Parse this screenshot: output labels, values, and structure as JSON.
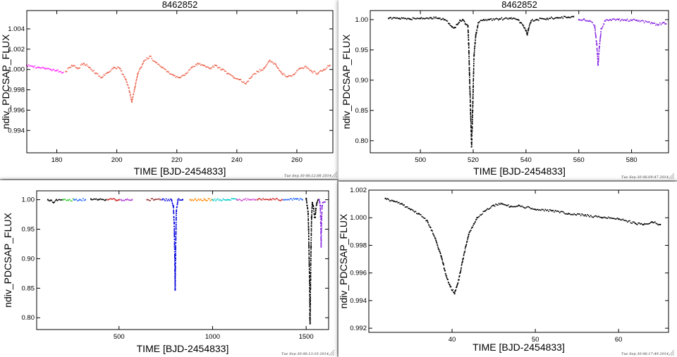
{
  "chart_data": [
    {
      "id": "p1",
      "type": "scatter",
      "title": "8462852",
      "xlabel": "TIME [BJD-2454833]",
      "ylabel": "ndiv_PDCSAP_FLUX",
      "xlim": [
        170,
        272
      ],
      "ylim": [
        0.9918,
        1.0058
      ],
      "xticks": [
        180,
        200,
        220,
        240,
        260
      ],
      "yticks": [
        0.994,
        0.996,
        0.998,
        1.0,
        1.002,
        1.004
      ],
      "yprec": 3,
      "timestamp": "Tue Sep 30 06:12:08 2014",
      "series": [
        {
          "color": "#ff33ff",
          "points": [
            [
              170,
              1.0004
            ],
            [
              172,
              1.0003
            ],
            [
              174,
              1.0002
            ],
            [
              176,
              1.0001
            ],
            [
              178,
              1.0
            ],
            [
              180,
              0.9999
            ],
            [
              182,
              0.9997
            ]
          ]
        },
        {
          "color": "#ee6a55",
          "points": [
            [
              183,
              0.9998
            ],
            [
              185,
              1.0004
            ],
            [
              187,
              1.0001
            ],
            [
              189,
              1.0006
            ],
            [
              191,
              1.0002
            ],
            [
              193,
              0.9996
            ],
            [
              195,
              0.9992
            ],
            [
              197,
              0.9997
            ],
            [
              199,
              1.0002
            ],
            [
              201,
              1.0001
            ],
            [
              203,
              0.999
            ],
            [
              204,
              0.9982
            ],
            [
              205,
              0.9968
            ],
            [
              206,
              0.9982
            ],
            [
              207,
              0.9996
            ],
            [
              209,
              1.0008
            ],
            [
              211,
              1.0013
            ],
            [
              213,
              1.0007
            ],
            [
              215,
              1.0002
            ],
            [
              217,
              0.9998
            ],
            [
              219,
              0.9994
            ],
            [
              221,
              0.9992
            ],
            [
              223,
              0.9996
            ],
            [
              225,
              1.0002
            ],
            [
              227,
              1.0006
            ],
            [
              229,
              1.0004
            ],
            [
              231,
              1.0001
            ],
            [
              233,
              1.0004
            ],
            [
              235,
              1.0
            ],
            [
              237,
              0.9996
            ],
            [
              239,
              0.9992
            ],
            [
              241,
              0.999
            ],
            [
              243,
              0.9986
            ],
            [
              245,
              0.9993
            ],
            [
              247,
              0.9998
            ],
            [
              249,
              1.0001
            ],
            [
              251,
              1.0009
            ],
            [
              253,
              1.0005
            ],
            [
              255,
              0.9996
            ],
            [
              257,
              0.9993
            ],
            [
              259,
              0.9995
            ],
            [
              261,
              1.0001
            ],
            [
              263,
              1.0003
            ],
            [
              265,
              0.9998
            ],
            [
              267,
              0.9996
            ],
            [
              269,
              1.0
            ],
            [
              271,
              1.0004
            ]
          ]
        }
      ]
    },
    {
      "id": "p2",
      "type": "scatter",
      "title": "8462852",
      "xlabel": "TIME [BJD-2454833]",
      "ylabel": "ndiv_PDCSAP_FLUX",
      "xlim": [
        481,
        594
      ],
      "ylim": [
        0.78,
        1.015
      ],
      "xticks": [
        500,
        520,
        540,
        560,
        580
      ],
      "yticks": [
        0.8,
        0.85,
        0.9,
        0.95,
        1.0
      ],
      "yprec": 2,
      "timestamp": "Tue Sep 30 06:09:47 2014",
      "series": [
        {
          "color": "#000000",
          "points": [
            [
              488,
              1.002
            ],
            [
              492,
              1.002
            ],
            [
              496,
              1.001
            ],
            [
              500,
              1.002
            ],
            [
              504,
              1.003
            ],
            [
              507,
              1.002
            ],
            [
              509,
              1.0
            ],
            [
              511,
              0.993
            ],
            [
              512,
              0.988
            ],
            [
              513,
              0.987
            ],
            [
              514,
              0.992
            ],
            [
              515,
              0.999
            ],
            [
              516,
              1.0
            ],
            [
              517,
              0.993
            ],
            [
              518,
              0.99
            ],
            [
              518.3,
              0.96
            ],
            [
              518.6,
              0.91
            ],
            [
              519,
              0.85
            ],
            [
              519.4,
              0.79
            ],
            [
              519.8,
              0.85
            ],
            [
              520.3,
              0.94
            ],
            [
              521,
              0.975
            ],
            [
              522,
              0.995
            ],
            [
              524,
              1.0
            ],
            [
              526,
              1.0
            ],
            [
              530,
              1.001
            ],
            [
              534,
              1.002
            ],
            [
              537,
              1.0
            ],
            [
              538,
              0.995
            ],
            [
              539,
              0.99
            ],
            [
              540,
              0.982
            ],
            [
              540.5,
              0.975
            ],
            [
              541,
              0.985
            ],
            [
              542,
              0.998
            ],
            [
              544,
              1.0
            ],
            [
              548,
              1.002
            ],
            [
              552,
              1.003
            ],
            [
              556,
              1.004
            ],
            [
              558,
              1.005
            ]
          ]
        },
        {
          "color": "#8a2be2",
          "points": [
            [
              560,
              1.0
            ],
            [
              562,
              1.001
            ],
            [
              564,
              0.998
            ],
            [
              566,
              0.99
            ],
            [
              566.8,
              0.96
            ],
            [
              567.3,
              0.925
            ],
            [
              567.8,
              0.955
            ],
            [
              568.5,
              0.985
            ],
            [
              570,
              0.998
            ],
            [
              572,
              1.0
            ],
            [
              575,
              1.0
            ],
            [
              578,
              0.999
            ],
            [
              580,
              0.999
            ],
            [
              582,
              0.999
            ],
            [
              588,
              0.994
            ],
            [
              590,
              0.991
            ],
            [
              592,
              0.995
            ],
            [
              593,
              0.993
            ]
          ]
        }
      ]
    },
    {
      "id": "p3",
      "type": "scatter",
      "title": "",
      "xlabel": "TIME [BJD-2454833]",
      "ylabel": "ndiv_PDCSAP_FLUX",
      "xlim": [
        60,
        1620
      ],
      "ylim": [
        0.78,
        1.015
      ],
      "xticks": [
        500,
        1000,
        1500
      ],
      "yticks": [
        0.8,
        0.85,
        0.9,
        0.95,
        1.0
      ],
      "yprec": 2,
      "timestamp": "Tue Sep 30 06:13:10 2014",
      "series": [
        {
          "color": "#000000",
          "points": [
            [
              120,
              1.0
            ],
            [
              135,
              0.999
            ],
            [
              150,
              0.995
            ],
            [
              165,
              1.0
            ],
            [
              200,
              1.0
            ]
          ]
        },
        {
          "color": "#33cc33",
          "points": [
            [
              200,
              1.0
            ],
            [
              230,
              0.999
            ],
            [
              260,
              1.0
            ]
          ]
        },
        {
          "color": "#2266ff",
          "points": [
            [
              260,
              1.0
            ],
            [
              290,
              1.0
            ],
            [
              320,
              1.0
            ]
          ]
        },
        {
          "color": "#000000",
          "points": [
            [
              350,
              1.001
            ],
            [
              390,
              1.0
            ],
            [
              430,
              1.0
            ]
          ]
        },
        {
          "color": "#cc2222",
          "points": [
            [
              440,
              1.0
            ],
            [
              480,
              1.0
            ],
            [
              500,
              1.0
            ]
          ]
        },
        {
          "color": "#aa33cc",
          "points": [
            [
              510,
              1.0
            ],
            [
              540,
              1.0
            ],
            [
              570,
              1.0
            ]
          ]
        },
        {
          "color": "#993333",
          "points": [
            [
              650,
              1.0
            ],
            [
              690,
              1.0
            ],
            [
              720,
              1.0
            ]
          ]
        },
        {
          "color": "#0000dd",
          "points": [
            [
              730,
              1.0
            ],
            [
              780,
              1.0
            ],
            [
              790,
              0.99
            ],
            [
              795,
              0.96
            ],
            [
              797,
              0.92
            ],
            [
              799,
              0.88
            ],
            [
              800,
              0.847
            ],
            [
              802,
              0.9
            ],
            [
              806,
              0.98
            ],
            [
              815,
              1.0
            ],
            [
              840,
              1.0
            ]
          ]
        },
        {
          "color": "#ff8800",
          "points": [
            [
              880,
              1.0
            ],
            [
              960,
              1.0
            ],
            [
              1000,
              1.0
            ]
          ]
        },
        {
          "color": "#00cccc",
          "points": [
            [
              1000,
              1.0
            ],
            [
              1080,
              1.0
            ],
            [
              1130,
              1.0
            ]
          ]
        },
        {
          "color": "#cc44cc",
          "points": [
            [
              1130,
              1.0
            ],
            [
              1200,
              1.0
            ],
            [
              1230,
              1.0
            ]
          ]
        },
        {
          "color": "#cc2222",
          "points": [
            [
              1240,
              1.0
            ],
            [
              1310,
              1.001
            ],
            [
              1370,
              1.0
            ]
          ]
        },
        {
          "color": "#2266ff",
          "points": [
            [
              1380,
              1.0
            ],
            [
              1450,
              1.001
            ],
            [
              1480,
              1.0
            ]
          ]
        },
        {
          "color": "#000000",
          "points": [
            [
              1500,
              1.002
            ],
            [
              1505,
              0.99
            ],
            [
              1510,
              0.98
            ],
            [
              1513,
              0.95
            ],
            [
              1516,
              0.9
            ],
            [
              1519,
              0.85
            ],
            [
              1520,
              0.8
            ],
            [
              1521,
              0.79
            ],
            [
              1523,
              0.85
            ],
            [
              1526,
              0.92
            ],
            [
              1529,
              0.97
            ],
            [
              1533,
              0.995
            ],
            [
              1540,
              0.985
            ],
            [
              1545,
              0.97
            ],
            [
              1548,
              0.97
            ],
            [
              1552,
              0.985
            ],
            [
              1558,
              0.995
            ],
            [
              1565,
              1.0
            ]
          ]
        },
        {
          "color": "#8a2be2",
          "points": [
            [
              1570,
              1.0
            ],
            [
              1575,
              0.99
            ],
            [
              1578,
              0.96
            ],
            [
              1580,
              0.92
            ],
            [
              1582,
              0.96
            ],
            [
              1585,
              0.99
            ],
            [
              1590,
              0.995
            ],
            [
              1600,
              0.996
            ]
          ]
        }
      ]
    },
    {
      "id": "p4",
      "type": "scatter",
      "title": "",
      "xlabel": "TIME [BJD-2454833]",
      "ylabel": "ndiv_PDCSAP_FLUX",
      "xlim": [
        30,
        66
      ],
      "ylim": [
        0.9917,
        1.002
      ],
      "xticks": [
        40,
        50,
        60
      ],
      "yticks": [
        0.992,
        0.994,
        0.996,
        0.998,
        1.0,
        1.002
      ],
      "yprec": 3,
      "timestamp": "Tue Sep 30 06:17:49 2014",
      "series": [
        {
          "color": "#000000",
          "points": [
            [
              32,
              1.0014
            ],
            [
              33,
              1.0012
            ],
            [
              34,
              1.001
            ],
            [
              35,
              1.0006
            ],
            [
              36,
              1.0003
            ],
            [
              37,
              0.9998
            ],
            [
              38,
              0.9985
            ],
            [
              38.7,
              0.9972
            ],
            [
              39.3,
              0.9958
            ],
            [
              39.8,
              0.995
            ],
            [
              40.3,
              0.9945
            ],
            [
              40.8,
              0.9955
            ],
            [
              41.3,
              0.997
            ],
            [
              42,
              0.9988
            ],
            [
              43,
              1.0
            ],
            [
              44,
              1.0005
            ],
            [
              45,
              1.0009
            ],
            [
              46,
              1.001
            ],
            [
              47,
              1.0008
            ],
            [
              48,
              1.0009
            ],
            [
              50,
              1.0006
            ],
            [
              52,
              1.0005
            ],
            [
              54,
              1.0003
            ],
            [
              56,
              1.0002
            ],
            [
              58,
              1.0
            ],
            [
              60,
              0.9999
            ],
            [
              62,
              0.9996
            ],
            [
              63,
              0.9995
            ],
            [
              64,
              0.9997
            ],
            [
              65,
              0.9995
            ]
          ]
        }
      ]
    }
  ]
}
